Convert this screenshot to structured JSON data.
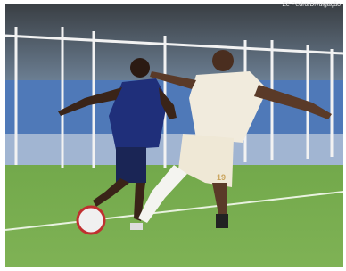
{
  "photo": {
    "credit": "Zé Pedro/Divulgação",
    "shorts_number": "19"
  }
}
